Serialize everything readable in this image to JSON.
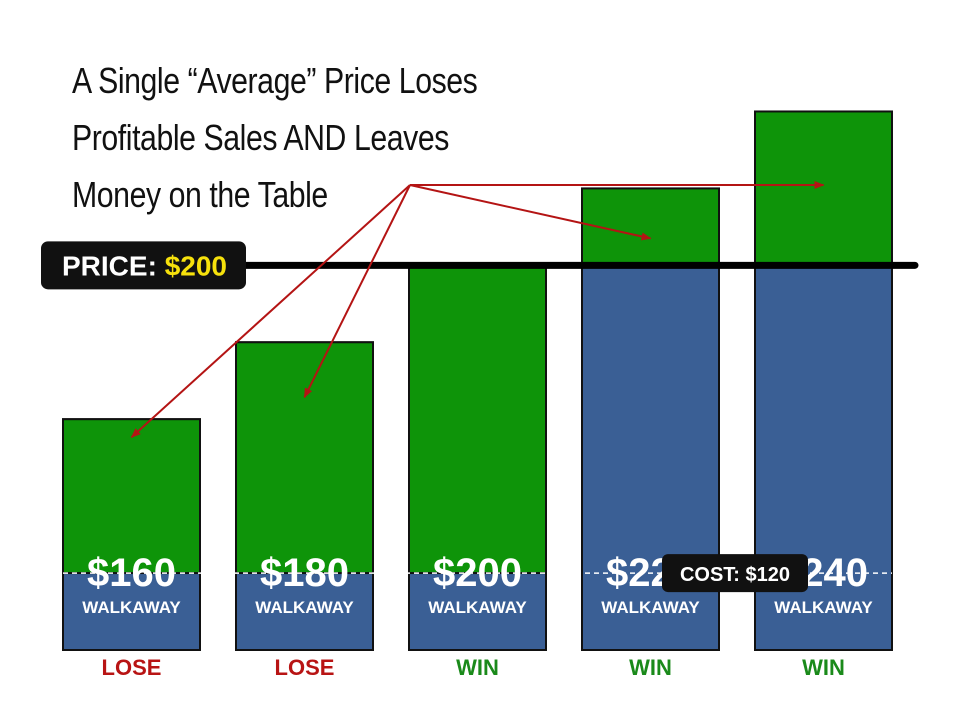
{
  "chart_data": {
    "type": "bar",
    "title_lines": [
      "A Single “Average” Price Loses",
      "Profitable Sales AND Leaves",
      "Money on the Table"
    ],
    "price_label": "PRICE:",
    "price_value_label": "$200",
    "price": 200,
    "cost_label": "COST: $120",
    "cost": 120,
    "walkaway_word": "WALKAWAY",
    "ylim": [
      100,
      250
    ],
    "categories": [
      "$160",
      "$180",
      "$200",
      "$220",
      "$240"
    ],
    "values": [
      160,
      180,
      200,
      220,
      240
    ],
    "outcomes": [
      "LOSE",
      "LOSE",
      "WIN",
      "WIN",
      "WIN"
    ],
    "grid": false,
    "colors": {
      "bar": "#3a5f95",
      "margin": "#0e9409",
      "lose": "#b81414",
      "win": "#1a8a1a",
      "arrow": "#b41414",
      "label_bg": "#111111",
      "price_value": "#f6e10c"
    }
  }
}
